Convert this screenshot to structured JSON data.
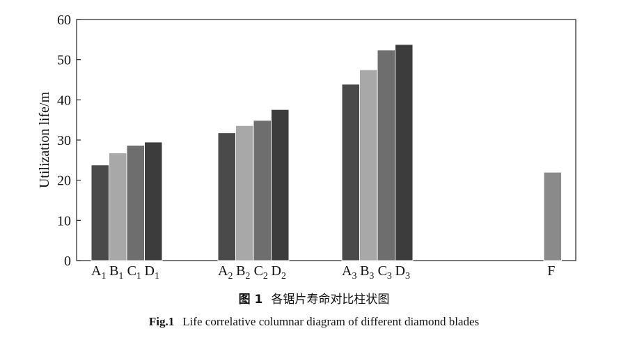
{
  "chart_data": {
    "type": "bar",
    "ylabel": "Utilization life/m",
    "xlabel": "",
    "ylim": [
      0,
      60
    ],
    "yticks": [
      0,
      10,
      20,
      30,
      40,
      50,
      60
    ],
    "grid": false,
    "groups": [
      {
        "bars": [
          {
            "label": "A",
            "sub": "1",
            "value": 23.8,
            "color": "#4a4a4a"
          },
          {
            "label": "B",
            "sub": "1",
            "value": 26.8,
            "color": "#a8a8a8"
          },
          {
            "label": "C",
            "sub": "1",
            "value": 28.7,
            "color": "#6e6e6e"
          },
          {
            "label": "D",
            "sub": "1",
            "value": 29.5,
            "color": "#3c3c3c"
          }
        ]
      },
      {
        "bars": [
          {
            "label": "A",
            "sub": "2",
            "value": 31.8,
            "color": "#4a4a4a"
          },
          {
            "label": "B",
            "sub": "2",
            "value": 33.6,
            "color": "#a8a8a8"
          },
          {
            "label": "C",
            "sub": "2",
            "value": 34.9,
            "color": "#6e6e6e"
          },
          {
            "label": "D",
            "sub": "2",
            "value": 37.6,
            "color": "#3c3c3c"
          }
        ]
      },
      {
        "bars": [
          {
            "label": "A",
            "sub": "3",
            "value": 43.9,
            "color": "#4a4a4a"
          },
          {
            "label": "B",
            "sub": "3",
            "value": 47.5,
            "color": "#a8a8a8"
          },
          {
            "label": "C",
            "sub": "3",
            "value": 52.4,
            "color": "#6e6e6e"
          },
          {
            "label": "D",
            "sub": "3",
            "value": 53.8,
            "color": "#3c3c3c"
          }
        ]
      },
      {
        "bars": [
          {
            "label": "F",
            "sub": "",
            "value": 22.0,
            "color": "#8a8a8a"
          }
        ]
      }
    ]
  },
  "captions": {
    "cn_fig": "图 1",
    "cn_text": "各锯片寿命对比柱状图",
    "en_fig": "Fig.1",
    "en_text": "Life correlative columnar diagram of different diamond blades"
  }
}
